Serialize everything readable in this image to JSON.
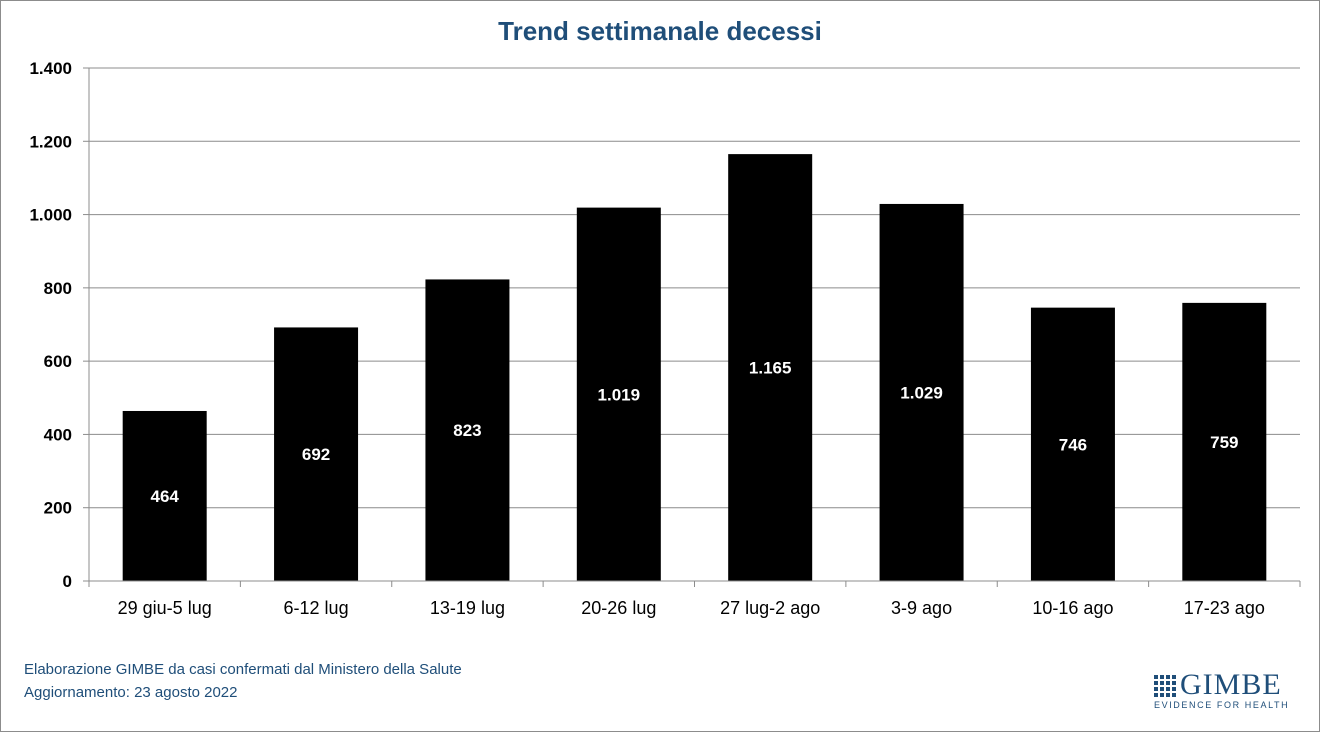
{
  "chart_data": {
    "type": "bar",
    "title": "Trend settimanale decessi",
    "categories": [
      "29 giu-5 lug",
      "6-12 lug",
      "13-19 lug",
      "20-26 lug",
      "27 lug-2 ago",
      "3-9 ago",
      "10-16 ago",
      "17-23 ago"
    ],
    "values": [
      464,
      692,
      823,
      1019,
      1165,
      1029,
      746,
      759
    ],
    "value_labels": [
      "464",
      "692",
      "823",
      "1.019",
      "1.165",
      "1.029",
      "746",
      "759"
    ],
    "ylim": [
      0,
      1400
    ],
    "yticks": [
      0,
      200,
      400,
      600,
      800,
      1000,
      1200,
      1400
    ],
    "ytick_labels": [
      "0",
      "200",
      "400",
      "600",
      "800",
      "1.000",
      "1.200",
      "1.400"
    ],
    "grid": true,
    "bar_color": "#000000",
    "label_color": "#ffffff"
  },
  "footer": {
    "source": "Elaborazione GIMBE da casi confermati dal Ministero della Salute",
    "updated": "Aggiornamento:  23 agosto 2022"
  },
  "logo": {
    "name": "GIMBE",
    "tagline": "EVIDENCE FOR HEALTH"
  },
  "colors": {
    "title": "#1f4e79",
    "grid": "#8c8c8c"
  }
}
